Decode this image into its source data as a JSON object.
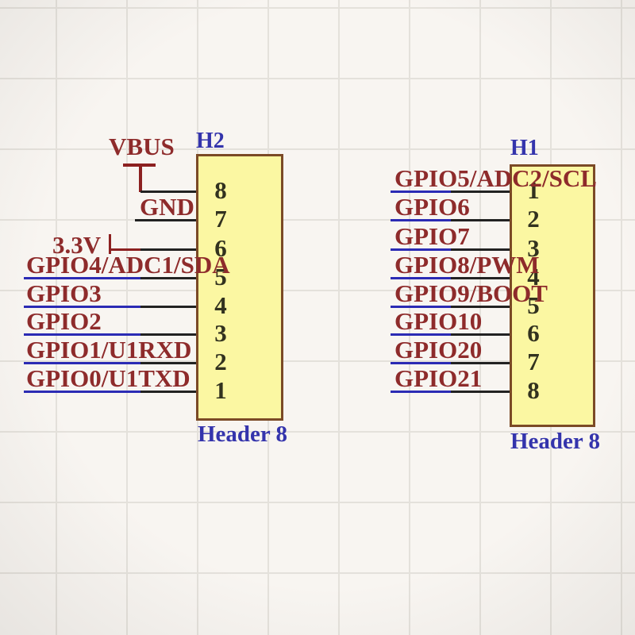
{
  "schematic": {
    "left_connector": {
      "designator": "H2",
      "part_name": "Header 8",
      "pins": [
        {
          "number": "8",
          "net": "VBUS",
          "net_kind": "power"
        },
        {
          "number": "7",
          "net": "GND",
          "net_kind": "power"
        },
        {
          "number": "6",
          "net": "3.3V",
          "net_kind": "power"
        },
        {
          "number": "5",
          "net": "GPIO4/ADC1/SDA",
          "net_kind": "signal"
        },
        {
          "number": "4",
          "net": "GPIO3",
          "net_kind": "signal"
        },
        {
          "number": "3",
          "net": "GPIO2",
          "net_kind": "signal"
        },
        {
          "number": "2",
          "net": "GPIO1/U1RXD",
          "net_kind": "signal"
        },
        {
          "number": "1",
          "net": "GPIO0/U1TXD",
          "net_kind": "signal"
        }
      ]
    },
    "right_connector": {
      "designator": "H1",
      "part_name": "Header 8",
      "pins": [
        {
          "number": "1",
          "net": "GPIO5/ADC2/SCL",
          "net_kind": "signal"
        },
        {
          "number": "2",
          "net": "GPIO6",
          "net_kind": "signal"
        },
        {
          "number": "3",
          "net": "GPIO7",
          "net_kind": "signal"
        },
        {
          "number": "4",
          "net": "GPIO8/PWM",
          "net_kind": "signal"
        },
        {
          "number": "5",
          "net": "GPIO9/BOOT",
          "net_kind": "signal"
        },
        {
          "number": "6",
          "net": "GPIO10",
          "net_kind": "signal"
        },
        {
          "number": "7",
          "net": "GPIO20",
          "net_kind": "signal"
        },
        {
          "number": "8",
          "net": "GPIO21",
          "net_kind": "signal"
        }
      ]
    },
    "colors": {
      "background": "#f8f5f1",
      "grid": "#e4e1db",
      "part_fill": "#fbf7a2",
      "part_border": "#7b4a26",
      "designator_text": "#3434ac",
      "net_label_text": "#8e2b2b",
      "wire_signal": "#2b2bb4",
      "wire_pin": "#222222",
      "power_symbol": "#8c2020",
      "pin_number_text": "#32321f"
    }
  }
}
